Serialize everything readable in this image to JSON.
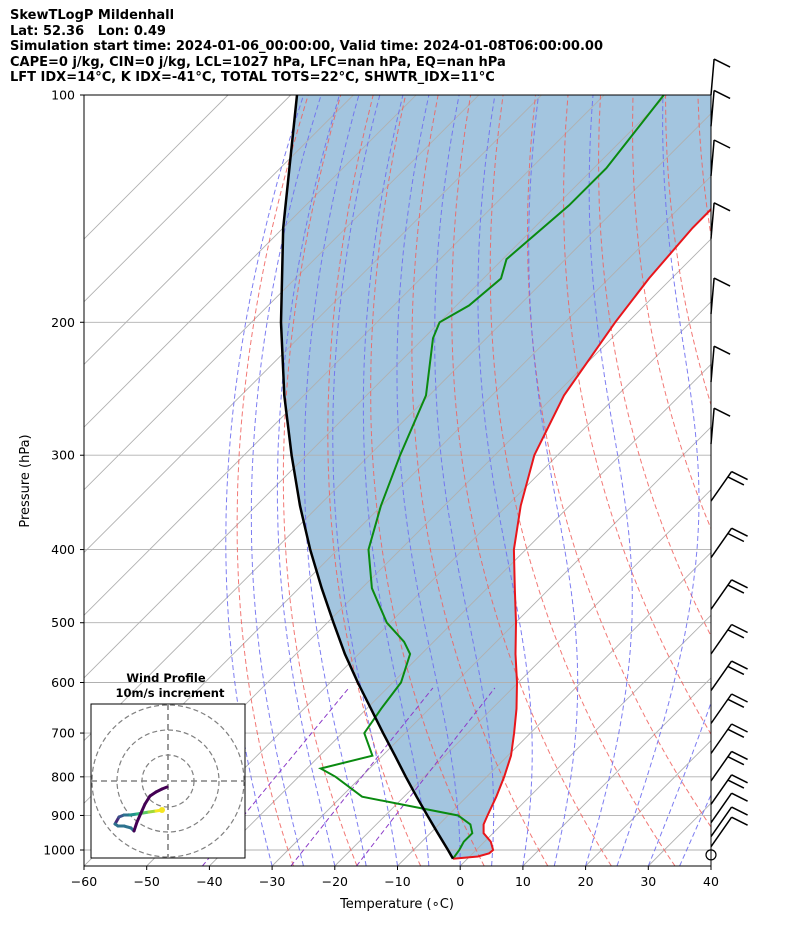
{
  "header": {
    "title": "SkewTLogP Mildenhall",
    "location": "Lat: 52.36   Lon: 0.49",
    "times": "Simulation start time: 2024-01-06_00:00:00, Valid time: 2024-01-08T06:00:00.00",
    "indices1": "CAPE=0 j/kg, CIN=0 j/kg, LCL=1027 hPa, LFC=nan hPa, EQ=nan hPa",
    "indices2": "LFT IDX=14°C, K IDX=-41°C, TOTAL TOTS=22°C, SHWTR_IDX=11°C"
  },
  "chart_data": {
    "type": "line",
    "subtype": "skew-t log-p",
    "xlabel": "Temperature (∘C)",
    "ylabel": "Pressure (hPa)",
    "xlim": [
      -60,
      40
    ],
    "ylim": [
      1050,
      100
    ],
    "x_ticks": [
      -60,
      -50,
      -40,
      -30,
      -20,
      -10,
      0,
      10,
      20,
      30,
      40
    ],
    "x_tick_labels": [
      "−60",
      "−50",
      "−40",
      "−30",
      "−20",
      "−10",
      "0",
      "10",
      "20",
      "30",
      "40"
    ],
    "y_ticks": [
      1000,
      900,
      800,
      700,
      600,
      500,
      400,
      300,
      200,
      100
    ],
    "y_tick_labels": [
      "1000",
      "900",
      "800",
      "700",
      "600",
      "500",
      "400",
      "300",
      "200",
      "100"
    ],
    "y_scale": "log",
    "skew": "isotherms slope 45 degrees",
    "grid": true,
    "colors": {
      "temperature": "#e8161b",
      "dewpoint": "#0a8a10",
      "parcel": "#000000",
      "cin_fill": "#a3c5df",
      "dry_adiabat": "#f0605d",
      "moist_adiabat": "#6f6ff0",
      "mixing_ratio": "#8c3cc8",
      "isotherm": "#b0b0b0"
    },
    "series": [
      {
        "key": "temperature",
        "points": [
          [
            1027,
            -2.3
          ],
          [
            1020,
            1.3
          ],
          [
            1010,
            2.6
          ],
          [
            1000,
            2.7
          ],
          [
            975,
            1.0
          ],
          [
            950,
            -1.5
          ],
          [
            925,
            -2.9
          ],
          [
            900,
            -3.7
          ],
          [
            850,
            -5.3
          ],
          [
            800,
            -7.2
          ],
          [
            750,
            -9.5
          ],
          [
            700,
            -12.6
          ],
          [
            650,
            -16.1
          ],
          [
            600,
            -20.2
          ],
          [
            550,
            -25.0
          ],
          [
            500,
            -29.9
          ],
          [
            450,
            -35.6
          ],
          [
            400,
            -41.9
          ],
          [
            350,
            -47.8
          ],
          [
            300,
            -53.7
          ],
          [
            250,
            -58.5
          ],
          [
            200,
            -62.0
          ],
          [
            175,
            -63.6
          ],
          [
            150,
            -64.7
          ],
          [
            125,
            -64.8
          ],
          [
            100,
            -63.0
          ]
        ]
      },
      {
        "key": "dewpoint",
        "points": [
          [
            1027,
            -2.3
          ],
          [
            1000,
            -2.7
          ],
          [
            975,
            -3.3
          ],
          [
            950,
            -3.3
          ],
          [
            925,
            -5.0
          ],
          [
            900,
            -8.4
          ],
          [
            850,
            -26.7
          ],
          [
            800,
            -34.1
          ],
          [
            780,
            -37.8
          ],
          [
            750,
            -31.6
          ],
          [
            700,
            -36.5
          ],
          [
            650,
            -37.7
          ],
          [
            600,
            -38.7
          ],
          [
            550,
            -41.8
          ],
          [
            530,
            -44.7
          ],
          [
            500,
            -50.5
          ],
          [
            450,
            -58.4
          ],
          [
            400,
            -65.1
          ],
          [
            350,
            -70.1
          ],
          [
            300,
            -75.1
          ],
          [
            250,
            -80.5
          ],
          [
            210,
            -88.5
          ],
          [
            200,
            -90.0
          ],
          [
            190,
            -88.0
          ],
          [
            175,
            -87.2
          ],
          [
            165,
            -89.4
          ],
          [
            140,
            -88.0
          ],
          [
            125,
            -88.0
          ],
          [
            100,
            -90.5
          ]
        ]
      },
      {
        "key": "parcel",
        "points": [
          [
            1027,
            -2.3
          ],
          [
            1000,
            -4.5
          ],
          [
            950,
            -8.8
          ],
          [
            900,
            -13.3
          ],
          [
            850,
            -18.0
          ],
          [
            800,
            -22.9
          ],
          [
            750,
            -28.0
          ],
          [
            700,
            -33.5
          ],
          [
            650,
            -39.3
          ],
          [
            600,
            -45.6
          ],
          [
            550,
            -52.2
          ],
          [
            500,
            -59.0
          ],
          [
            450,
            -66.4
          ],
          [
            400,
            -74.4
          ],
          [
            350,
            -83.0
          ],
          [
            300,
            -92.4
          ],
          [
            250,
            -103.1
          ],
          [
            200,
            -115.3
          ],
          [
            150,
            -130.0
          ],
          [
            100,
            -149.0
          ]
        ]
      }
    ],
    "wind_barbs_pressures": [
      1015,
      990,
      960,
      920,
      870,
      810,
      745,
      680,
      615,
      550,
      480,
      410,
      345,
      290,
      240,
      195,
      155,
      128,
      110,
      100
    ]
  },
  "inset": {
    "title_line1": "Wind Profile",
    "title_line2": "10m/s increment"
  }
}
